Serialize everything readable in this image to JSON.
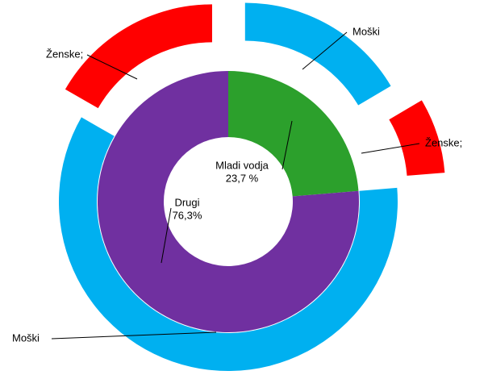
{
  "chart_data": {
    "type": "nested-donut",
    "inner": {
      "categories": [
        "Mladi vodja",
        "Drugi"
      ],
      "values": [
        23.7,
        76.3
      ],
      "value_labels": [
        "23,7 %",
        "76,3%"
      ],
      "colors": [
        "#2ca02c",
        "#7030a0"
      ]
    },
    "outer": {
      "categories": [
        "Moški",
        "Ženske;",
        "Moški",
        "Ženske;"
      ],
      "values": [
        16.5,
        7.2,
        59.6,
        16.7
      ],
      "colors": [
        "#00b0f0",
        "#ff0000",
        "#00b0f0",
        "#ff0000"
      ]
    }
  }
}
